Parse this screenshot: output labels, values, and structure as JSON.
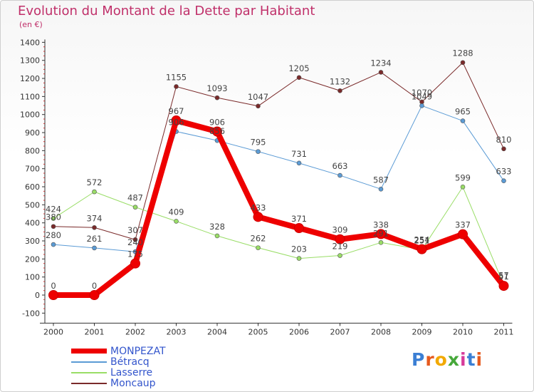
{
  "title": "Evolution du Montant de la Dette par Habitant",
  "unit": "(en €)",
  "logo": "Proxiti",
  "chart_data": {
    "type": "line",
    "title": "Evolution du Montant de la Dette par Habitant",
    "subtitle": "(en €)",
    "xlabel": "",
    "ylabel": "",
    "categories": [
      "2000",
      "2001",
      "2002",
      "2003",
      "2004",
      "2005",
      "2006",
      "2007",
      "2008",
      "2009",
      "2010",
      "2011"
    ],
    "ylim": [
      -100,
      1400
    ],
    "yticks": [
      -100,
      0,
      100,
      200,
      300,
      400,
      500,
      600,
      700,
      800,
      900,
      1000,
      1100,
      1200,
      1300,
      1400
    ],
    "grid": false,
    "legend_position": "bottom-left",
    "series": [
      {
        "name": "MONPEZAT",
        "color": "#ee0000",
        "width": 8,
        "values": [
          0,
          0,
          175,
          967,
          906,
          433,
          371,
          309,
          338,
          254,
          337,
          51
        ],
        "labels": [
          "0",
          "0",
          "175",
          "967",
          "906",
          "433",
          "371",
          "309",
          "338",
          "254",
          "337",
          "51"
        ]
      },
      {
        "name": "Bétracq",
        "color": "#5b9bd5",
        "width": 1,
        "values": [
          280,
          261,
          240,
          906,
          856,
          795,
          731,
          663,
          587,
          1049,
          965,
          633
        ],
        "labels": [
          "280",
          "261",
          "240",
          "906",
          "856",
          "795",
          "731",
          "663",
          "587",
          "1049",
          "965",
          "633"
        ]
      },
      {
        "name": "Lasserre",
        "color": "#99dd66",
        "width": 1,
        "values": [
          424,
          572,
          487,
          409,
          328,
          262,
          203,
          219,
          291,
          251,
          599,
          57
        ],
        "labels": [
          "424",
          "572",
          "487",
          "409",
          "328",
          "262",
          "203",
          "219",
          "291",
          "251",
          "599",
          "57"
        ]
      },
      {
        "name": "Moncaup",
        "color": "#7a2a2a",
        "width": 1,
        "values": [
          380,
          374,
          307,
          1155,
          1093,
          1047,
          1205,
          1132,
          1234,
          1070,
          1288,
          810
        ],
        "labels": [
          "380",
          "374",
          "307",
          "1155",
          "1093",
          "1047",
          "1205",
          "1132",
          "1234",
          "1070",
          "1288",
          "810"
        ]
      }
    ]
  }
}
